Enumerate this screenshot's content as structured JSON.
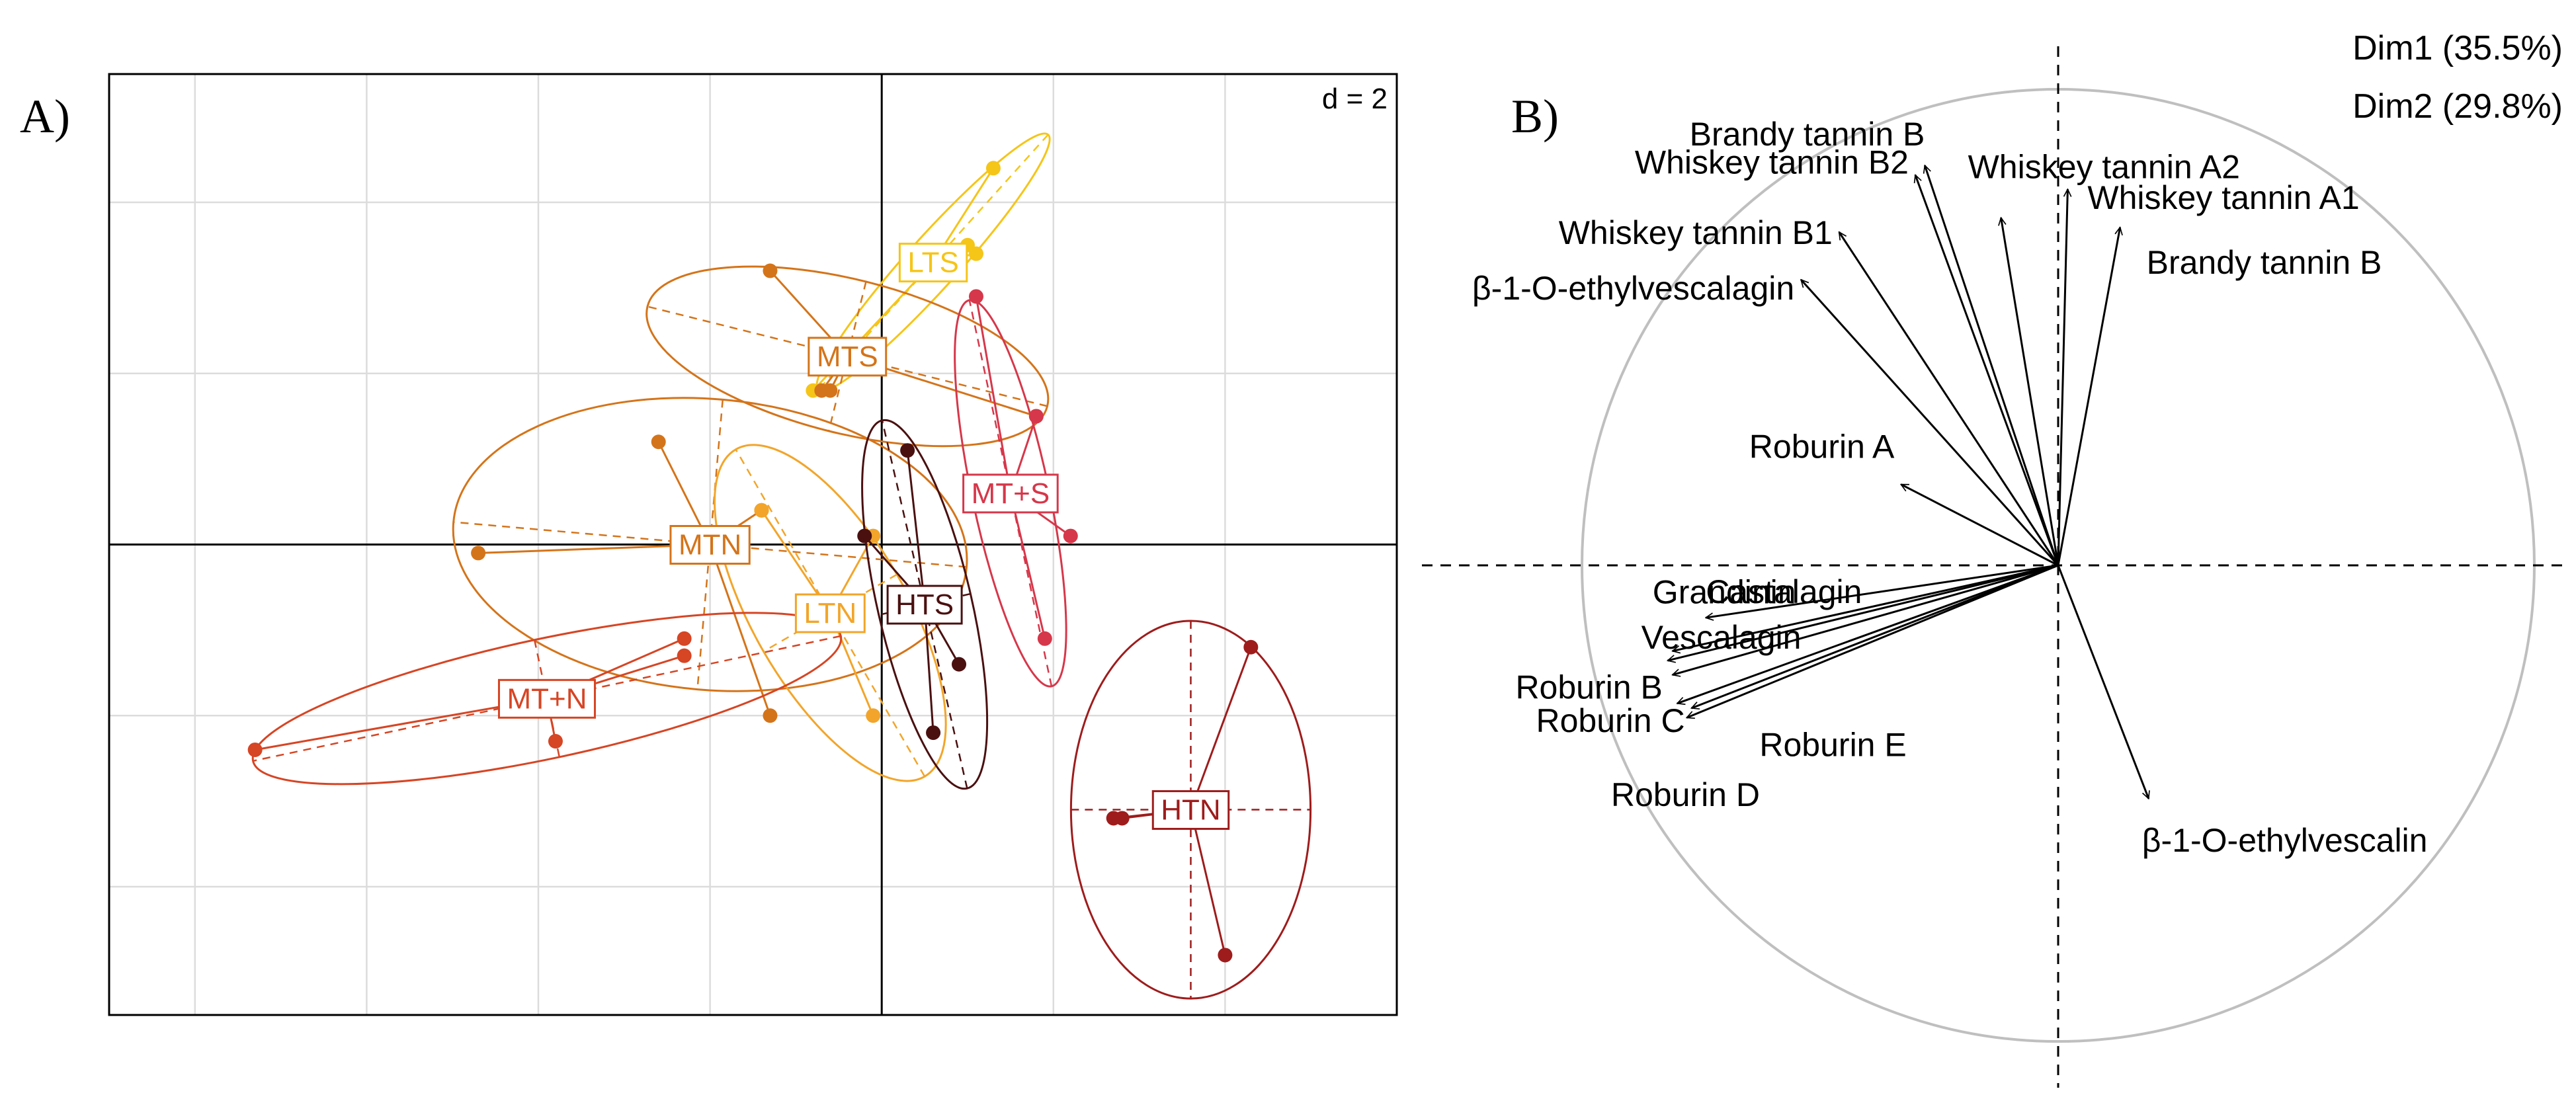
{
  "chart_data": [
    {
      "type": "scatter",
      "panel_label": "A)",
      "scale_label": "d = 2",
      "grid": true,
      "xlim": [
        -9,
        6
      ],
      "ylim": [
        -5.5,
        5.5
      ],
      "grid_step": 2,
      "groups": [
        {
          "name": "LTS",
          "color": "#f5c518",
          "center": [
            0.6,
            3.3
          ],
          "ellipse": {
            "rx": 2.0,
            "ry": 0.3,
            "angle": 48
          },
          "points": [
            [
              1.3,
              4.4
            ],
            [
              -0.8,
              1.8
            ],
            [
              1.0,
              3.5
            ],
            [
              1.1,
              3.4
            ]
          ]
        },
        {
          "name": "MTS",
          "color": "#d4741a",
          "center": [
            -0.4,
            2.2
          ],
          "ellipse": {
            "rx": 2.4,
            "ry": 0.9,
            "angle": -14
          },
          "points": [
            [
              -0.6,
              1.8
            ],
            [
              -1.3,
              3.2
            ],
            [
              1.8,
              1.5
            ],
            [
              -0.7,
              1.8
            ]
          ]
        },
        {
          "name": "MT+S",
          "color": "#d6374a",
          "center": [
            1.5,
            0.6
          ],
          "ellipse": {
            "rx": 2.3,
            "ry": 0.45,
            "angle": -78
          },
          "points": [
            [
              1.1,
              2.9
            ],
            [
              1.8,
              1.5
            ],
            [
              2.2,
              0.1
            ],
            [
              1.9,
              -1.1
            ]
          ]
        },
        {
          "name": "MTN",
          "color": "#d4741a",
          "center": [
            -2.0,
            0.0
          ],
          "ellipse": {
            "rx": 3.0,
            "ry": 1.7,
            "angle": -5
          },
          "points": [
            [
              -4.7,
              -0.1
            ],
            [
              -2.6,
              1.2
            ],
            [
              -1.4,
              0.4
            ],
            [
              -1.3,
              -2.0
            ]
          ]
        },
        {
          "name": "LTN",
          "color": "#f2a52a",
          "center": [
            -0.6,
            -0.8
          ],
          "ellipse": {
            "rx": 2.2,
            "ry": 0.9,
            "angle": -60
          },
          "points": [
            [
              -1.4,
              0.4
            ],
            [
              -0.1,
              -2.0
            ],
            [
              -0.1,
              0.1
            ]
          ]
        },
        {
          "name": "HTS",
          "color": "#4a1010",
          "center": [
            0.5,
            -0.7
          ],
          "ellipse": {
            "rx": 2.2,
            "ry": 0.55,
            "angle": -77
          },
          "points": [
            [
              0.3,
              1.1
            ],
            [
              -0.2,
              0.1
            ],
            [
              0.9,
              -1.4
            ],
            [
              0.6,
              -2.2
            ]
          ]
        },
        {
          "name": "MT+N",
          "color": "#d64524",
          "center": [
            -3.9,
            -1.8
          ],
          "ellipse": {
            "rx": 3.5,
            "ry": 0.7,
            "angle": 12
          },
          "points": [
            [
              -7.3,
              -2.4
            ],
            [
              -2.3,
              -1.1
            ],
            [
              -2.3,
              -1.3
            ],
            [
              -3.8,
              -2.3
            ]
          ]
        },
        {
          "name": "HTN",
          "color": "#9e1c1c",
          "center": [
            3.6,
            -3.1
          ],
          "ellipse": {
            "rx": 2.2,
            "ry": 1.4,
            "angle": 90
          },
          "points": [
            [
              4.3,
              -1.2
            ],
            [
              2.7,
              -3.2
            ],
            [
              2.8,
              -3.2
            ],
            [
              4.0,
              -4.8
            ]
          ]
        }
      ]
    },
    {
      "type": "scatter",
      "subtype": "correlation-circle",
      "panel_label": "B)",
      "dim_labels": [
        "Dim1 (35.5%)",
        "Dim2 (29.8%)"
      ],
      "xlim": [
        -1.0,
        1.0
      ],
      "ylim": [
        -1.0,
        1.0
      ],
      "variables": [
        {
          "name": "Brandy tannin B",
          "x": -0.28,
          "y": 0.84
        },
        {
          "name": "Whiskey tannin B2",
          "x": -0.3,
          "y": 0.82
        },
        {
          "name": "Whiskey tannin A2",
          "x": -0.12,
          "y": 0.73
        },
        {
          "name": "Whiskey tannin A1",
          "x": 0.02,
          "y": 0.79
        },
        {
          "name": "Brandy tannin B",
          "x": 0.13,
          "y": 0.71
        },
        {
          "name": "Whiskey tannin B1",
          "x": -0.46,
          "y": 0.7
        },
        {
          "name": "β-1-O-ethylvescalagin",
          "x": -0.54,
          "y": 0.6
        },
        {
          "name": "Roburin A",
          "x": -0.33,
          "y": 0.17
        },
        {
          "name": "Castalagin",
          "x": -0.74,
          "y": -0.11
        },
        {
          "name": "Grandinin",
          "x": -0.81,
          "y": -0.18
        },
        {
          "name": "Vescalagin",
          "x": -0.82,
          "y": -0.2
        },
        {
          "name": "Roburin B",
          "x": -0.81,
          "y": -0.23
        },
        {
          "name": "Roburin C",
          "x": -0.77,
          "y": -0.3
        },
        {
          "name": "Roburin E",
          "x": -0.78,
          "y": -0.32
        },
        {
          "name": "Roburin D",
          "x": -0.8,
          "y": -0.29
        },
        {
          "name": "β-1-O-ethylvescalin",
          "x": 0.19,
          "y": -0.49
        }
      ]
    }
  ]
}
